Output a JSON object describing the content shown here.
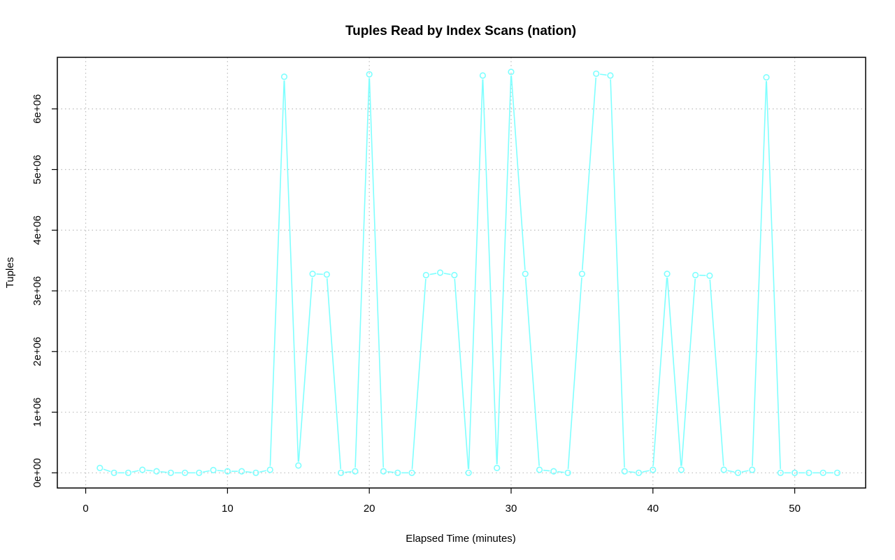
{
  "chart_data": {
    "type": "line",
    "title": "Tuples Read by Index Scans (nation)",
    "xlabel": "Elapsed Time (minutes)",
    "ylabel": "Tuples",
    "xlim": [
      -2,
      55
    ],
    "ylim": [
      -250000,
      6850000
    ],
    "xticks": [
      0,
      10,
      20,
      30,
      40,
      50
    ],
    "xtick_labels": [
      "0",
      "10",
      "20",
      "30",
      "40",
      "50"
    ],
    "yticks": [
      0,
      1000000,
      2000000,
      3000000,
      4000000,
      5000000,
      6000000
    ],
    "ytick_labels": [
      "0e+00",
      "1e+06",
      "2e+06",
      "3e+06",
      "4e+06",
      "5e+06",
      "6e+06"
    ],
    "grid": true,
    "series_color": "#7fffff",
    "series": [
      {
        "x": [
          1,
          2,
          3,
          4,
          5,
          6,
          7,
          8,
          9,
          10,
          11,
          12,
          13,
          14,
          15,
          16,
          17,
          18,
          19,
          20,
          21,
          22,
          23,
          24,
          25,
          26,
          27,
          28,
          29,
          30,
          31,
          32,
          33,
          34,
          35,
          36,
          37,
          38,
          39,
          40,
          41,
          42,
          43,
          44,
          45,
          46,
          47,
          48,
          49,
          50,
          51,
          52,
          53
        ],
        "values": [
          80000,
          0,
          0,
          50000,
          25000,
          0,
          0,
          0,
          45000,
          25000,
          25000,
          0,
          50000,
          6530000,
          120000,
          3280000,
          3270000,
          0,
          25000,
          6570000,
          25000,
          0,
          0,
          3260000,
          3300000,
          3260000,
          0,
          6550000,
          80000,
          6610000,
          3280000,
          50000,
          25000,
          0,
          3280000,
          6580000,
          6550000,
          25000,
          0,
          50000,
          3280000,
          50000,
          3260000,
          3250000,
          50000,
          0,
          50000,
          6520000,
          0,
          0,
          0,
          0,
          0
        ]
      }
    ]
  }
}
